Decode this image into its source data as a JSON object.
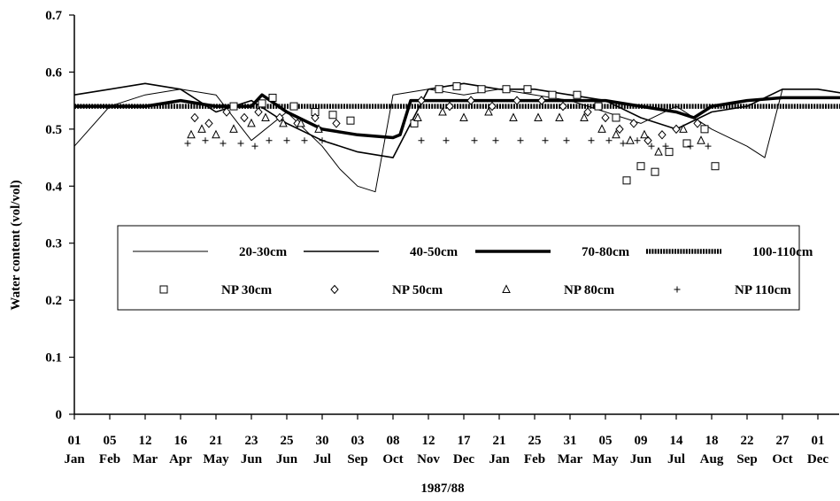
{
  "chart_data": {
    "type": "line",
    "title": "",
    "xlabel": "1987/88",
    "ylabel": "Water content (vol/vol)",
    "ylim": [
      0,
      0.7
    ],
    "yticks": [
      "0",
      "0.1",
      "0.2",
      "0.3",
      "0.4",
      "0.5",
      "0.6",
      "0.7"
    ],
    "xticks": [
      {
        "day": "01",
        "month": "Jan"
      },
      {
        "day": "05",
        "month": "Feb"
      },
      {
        "day": "12",
        "month": "Mar"
      },
      {
        "day": "16",
        "month": "Apr"
      },
      {
        "day": "21",
        "month": "May"
      },
      {
        "day": "23",
        "month": "Jun"
      },
      {
        "day": "25",
        "month": "Jun"
      },
      {
        "day": "30",
        "month": "Jul"
      },
      {
        "day": "03",
        "month": "Sep"
      },
      {
        "day": "08",
        "month": "Oct"
      },
      {
        "day": "12",
        "month": "Nov"
      },
      {
        "day": "17",
        "month": "Dec"
      },
      {
        "day": "21",
        "month": "Jan"
      },
      {
        "day": "25",
        "month": "Feb"
      },
      {
        "day": "31",
        "month": "Mar"
      },
      {
        "day": "05",
        "month": "May"
      },
      {
        "day": "09",
        "month": "Jun"
      },
      {
        "day": "14",
        "month": "Jul"
      },
      {
        "day": "18",
        "month": "Aug"
      },
      {
        "day": "22",
        "month": "Sep"
      },
      {
        "day": "27",
        "month": "Oct"
      },
      {
        "day": "01",
        "month": "Dec"
      }
    ],
    "grid": false,
    "legend_position": "center-middle",
    "series": [
      {
        "name": "20-30cm",
        "kind": "line",
        "style": "thin",
        "color": "#000000",
        "x": [
          0,
          1,
          2,
          3,
          4,
          5,
          6,
          7,
          7.5,
          8,
          8.5,
          9,
          10,
          11,
          12,
          13,
          14,
          15,
          16,
          17,
          18,
          19,
          19.5,
          20,
          21,
          22
        ],
        "y": [
          0.47,
          0.54,
          0.56,
          0.57,
          0.56,
          0.48,
          0.53,
          0.47,
          0.43,
          0.4,
          0.39,
          0.56,
          0.57,
          0.56,
          0.57,
          0.56,
          0.55,
          0.53,
          0.51,
          0.54,
          0.5,
          0.47,
          0.45,
          0.57,
          0.57,
          0.56
        ]
      },
      {
        "name": "40-50cm",
        "kind": "line",
        "style": "medium",
        "color": "#000000",
        "x": [
          0,
          1,
          2,
          3,
          4,
          5,
          6,
          7,
          8,
          9,
          10,
          11,
          12,
          13,
          14,
          15,
          16,
          17,
          18,
          19,
          20,
          21,
          22
        ],
        "y": [
          0.56,
          0.57,
          0.58,
          0.57,
          0.53,
          0.55,
          0.51,
          0.48,
          0.46,
          0.45,
          0.57,
          0.58,
          0.57,
          0.57,
          0.56,
          0.55,
          0.52,
          0.5,
          0.53,
          0.54,
          0.57,
          0.57,
          0.56
        ]
      },
      {
        "name": "70-80cm",
        "kind": "line",
        "style": "thick",
        "color": "#000000",
        "x": [
          0,
          1,
          2,
          3,
          4,
          5,
          5.3,
          6,
          7,
          8,
          9,
          9.2,
          9.5,
          10,
          11,
          12,
          13,
          14,
          15,
          16,
          17,
          17.5,
          18,
          19,
          20,
          21,
          22
        ],
        "y": [
          0.54,
          0.54,
          0.54,
          0.55,
          0.54,
          0.54,
          0.56,
          0.53,
          0.5,
          0.49,
          0.485,
          0.49,
          0.55,
          0.55,
          0.55,
          0.55,
          0.55,
          0.55,
          0.55,
          0.54,
          0.53,
          0.52,
          0.54,
          0.55,
          0.555,
          0.555,
          0.555
        ]
      },
      {
        "name": "100-110cm",
        "kind": "line",
        "style": "beaded",
        "color": "#000000",
        "x": [
          0,
          1,
          2,
          3,
          4,
          5,
          6,
          7,
          8,
          9,
          10,
          11,
          12,
          13,
          14,
          15,
          16,
          17,
          18,
          19,
          20,
          21,
          22
        ],
        "y": [
          0.54,
          0.54,
          0.54,
          0.54,
          0.54,
          0.54,
          0.54,
          0.54,
          0.54,
          0.54,
          0.54,
          0.54,
          0.54,
          0.54,
          0.54,
          0.54,
          0.54,
          0.54,
          0.54,
          0.54,
          0.54,
          0.54,
          0.54
        ]
      },
      {
        "name": "NP 30cm",
        "kind": "points",
        "marker": "square",
        "x": [
          4.5,
          5.3,
          5.6,
          6.2,
          6.8,
          7.3,
          7.8,
          9.6,
          10.3,
          10.8,
          11.5,
          12.2,
          12.8,
          13.5,
          14.2,
          14.8,
          15.3,
          15.6,
          16.0,
          16.4,
          16.8,
          17.3,
          17.8,
          18.1
        ],
        "y": [
          0.54,
          0.545,
          0.555,
          0.54,
          0.53,
          0.525,
          0.515,
          0.51,
          0.57,
          0.575,
          0.57,
          0.57,
          0.57,
          0.56,
          0.56,
          0.54,
          0.52,
          0.41,
          0.435,
          0.425,
          0.46,
          0.475,
          0.5,
          0.435
        ]
      },
      {
        "name": "NP 50cm",
        "kind": "points",
        "marker": "diamond",
        "x": [
          3.4,
          3.8,
          4.3,
          4.8,
          5.2,
          5.8,
          6.3,
          6.8,
          7.4,
          9.8,
          10.6,
          11.2,
          11.8,
          12.5,
          13.2,
          13.8,
          14.5,
          15.0,
          15.4,
          15.8,
          16.2,
          16.6,
          17.0,
          17.6
        ],
        "y": [
          0.52,
          0.51,
          0.53,
          0.52,
          0.53,
          0.52,
          0.51,
          0.52,
          0.51,
          0.55,
          0.54,
          0.55,
          0.54,
          0.55,
          0.55,
          0.54,
          0.53,
          0.52,
          0.5,
          0.51,
          0.48,
          0.49,
          0.5,
          0.51
        ]
      },
      {
        "name": "NP 80cm",
        "kind": "points",
        "marker": "triangle",
        "x": [
          3.3,
          3.6,
          4.0,
          4.5,
          5.0,
          5.4,
          5.9,
          6.4,
          6.9,
          9.7,
          10.4,
          11.0,
          11.7,
          12.4,
          13.1,
          13.7,
          14.4,
          14.9,
          15.3,
          15.7,
          16.1,
          16.5,
          17.2,
          17.7
        ],
        "y": [
          0.49,
          0.5,
          0.49,
          0.5,
          0.51,
          0.52,
          0.51,
          0.51,
          0.5,
          0.52,
          0.53,
          0.52,
          0.53,
          0.52,
          0.52,
          0.52,
          0.52,
          0.5,
          0.49,
          0.48,
          0.49,
          0.46,
          0.5,
          0.48
        ]
      },
      {
        "name": "NP 110cm",
        "kind": "points",
        "marker": "plus",
        "x": [
          3.2,
          3.7,
          4.2,
          4.7,
          5.1,
          5.5,
          6.0,
          6.5,
          7.0,
          9.8,
          10.5,
          11.3,
          11.9,
          12.6,
          13.3,
          13.9,
          14.6,
          15.1,
          15.5,
          15.9,
          16.3,
          16.7,
          17.4,
          17.9
        ],
        "y": [
          0.475,
          0.48,
          0.475,
          0.475,
          0.47,
          0.48,
          0.48,
          0.48,
          0.48,
          0.48,
          0.48,
          0.48,
          0.48,
          0.48,
          0.48,
          0.48,
          0.48,
          0.48,
          0.475,
          0.48,
          0.47,
          0.47,
          0.47,
          0.47
        ]
      }
    ]
  }
}
